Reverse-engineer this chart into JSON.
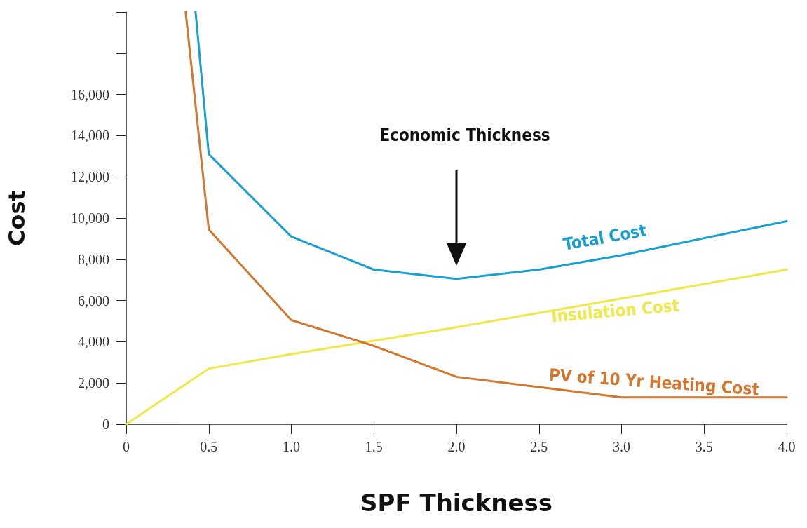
{
  "chart_data": {
    "type": "line",
    "xlabel": "SPF Thickness",
    "ylabel": "Cost",
    "xlim": [
      0,
      4
    ],
    "xticks": [
      0,
      0.5,
      {
        "value": 1,
        "label": "1.0"
      },
      1.5,
      {
        "value": 2,
        "label": "2.0"
      },
      2.5,
      {
        "value": 3,
        "label": "3.0"
      },
      3.5,
      {
        "value": 4,
        "label": "4.0"
      }
    ],
    "ylim": [
      0,
      20000
    ],
    "yticks": [
      {
        "value": 0,
        "label": "0"
      },
      {
        "value": 2000,
        "label": "2,000"
      },
      {
        "value": 4000,
        "label": "4,000"
      },
      {
        "value": 6000,
        "label": "6,000"
      },
      {
        "value": 8000,
        "label": "8,000"
      },
      {
        "value": 10000,
        "label": "10,000"
      },
      {
        "value": 12000,
        "label": "12,000"
      },
      {
        "value": 14000,
        "label": "14,000"
      },
      {
        "value": 16000,
        "label": "16,000"
      },
      {
        "value": 18000,
        "label": null
      },
      {
        "value": 20000,
        "label": null
      }
    ],
    "grid": false,
    "legend": false,
    "marker": "none",
    "line_style": "solid",
    "series": [
      {
        "name": "Total Cost",
        "color": "#1a9fd0",
        "x": [
          0.42,
          0.5,
          1,
          1.5,
          2,
          2.5,
          3,
          4
        ],
        "values": [
          20000,
          13100,
          9100,
          7500,
          7050,
          7500,
          8200,
          9850
        ]
      },
      {
        "name": "Insulation Cost",
        "color": "#eee84a",
        "x": [
          0,
          0.5,
          1,
          1.5,
          2,
          2.5,
          3,
          4
        ],
        "values": [
          0,
          2700,
          3400,
          4050,
          4700,
          5400,
          6100,
          7500
        ]
      },
      {
        "name": "PV of 10 Yr Heating Cost",
        "color": "#d2772f",
        "x": [
          0.36,
          0.5,
          1,
          1.5,
          2,
          2.5,
          3,
          4
        ],
        "values": [
          20000,
          9450,
          5050,
          3800,
          2300,
          1800,
          1300,
          1300
        ]
      }
    ],
    "annotations": [
      "Economic Thickness"
    ]
  }
}
